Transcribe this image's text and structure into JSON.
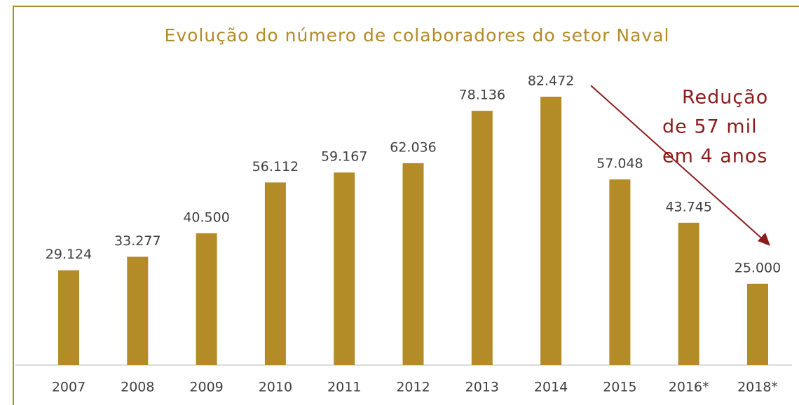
{
  "chart_data": {
    "type": "bar",
    "title": "Evolução do número de colaboradores do setor Naval",
    "categories": [
      "2007",
      "2008",
      "2009",
      "2010",
      "2011",
      "2012",
      "2013",
      "2014",
      "2015",
      "2016*",
      "2018*"
    ],
    "values": [
      29124,
      33277,
      40500,
      56112,
      59167,
      62036,
      78136,
      82472,
      57048,
      43745,
      25000
    ],
    "value_labels": [
      "29.124",
      "33.277",
      "40.500",
      "56.112",
      "59.167",
      "62.036",
      "78.136",
      "82.472",
      "57.048",
      "43.745",
      "25.000"
    ],
    "color": "#b38b27",
    "annotation": [
      "Redução",
      "de 57 mil",
      "em 4 anos"
    ]
  }
}
